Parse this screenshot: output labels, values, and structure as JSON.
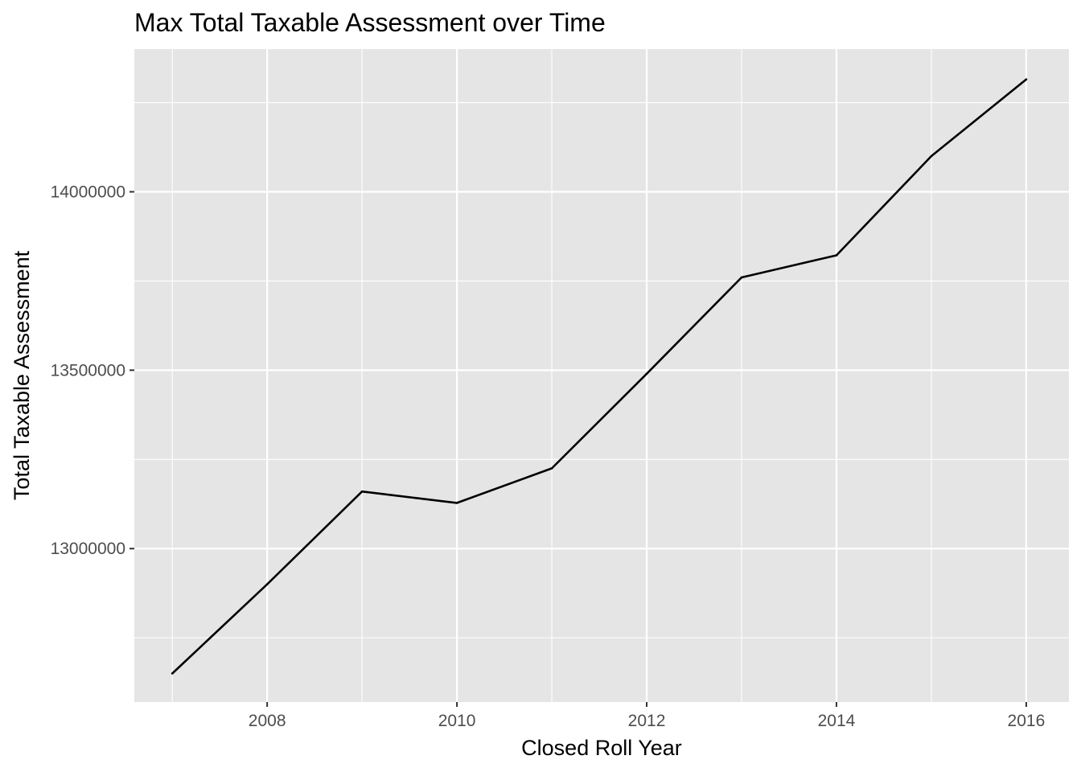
{
  "chart_data": {
    "type": "line",
    "title": "Max Total Taxable Assessment over Time",
    "xlabel": "Closed Roll Year",
    "ylabel": "Total Taxable Assessment",
    "x": [
      2007,
      2008,
      2009,
      2010,
      2011,
      2012,
      2013,
      2014,
      2015,
      2016
    ],
    "series": [
      {
        "values": [
          12650000,
          12900000,
          13160000,
          13128000,
          13225000,
          13490000,
          13760000,
          13822000,
          14100000,
          14315000
        ]
      }
    ],
    "xlim": [
      2006.6,
      2016.45
    ],
    "ylim": [
      12570000,
      14400000
    ],
    "x_ticks": [
      "2008",
      "2010",
      "2012",
      "2014",
      "2016"
    ],
    "y_ticks": [
      "13000000",
      "13500000",
      "14000000"
    ],
    "grid": true,
    "line_color": "#000000",
    "panel_color": "#e5e5e5",
    "grid_color": "#ffffff"
  }
}
